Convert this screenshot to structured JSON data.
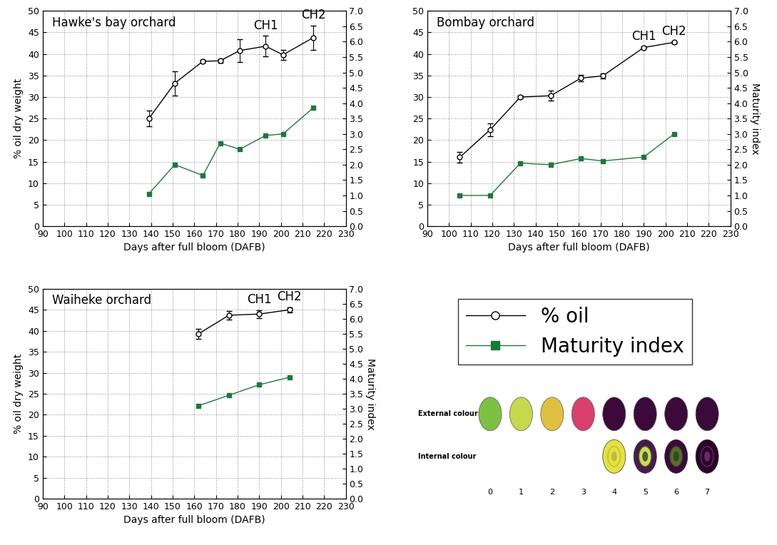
{
  "chart_data": [
    {
      "type": "line",
      "title": "Hawke's bay orchard",
      "xlabel": "Days after full bloom (DAFB)",
      "ylabel": "% oil dry weight",
      "x": [
        139,
        151,
        164,
        172,
        181,
        193,
        201,
        215
      ],
      "series": [
        {
          "name": "% oil",
          "color": "#000000",
          "marker": "circle",
          "line_style": "solid",
          "values": [
            25.0,
            33.2,
            38.3,
            38.4,
            40.8,
            41.8,
            39.8,
            43.8
          ],
          "errors": [
            1.8,
            2.8,
            0.3,
            0.4,
            2.6,
            2.4,
            1.2,
            2.8
          ]
        },
        {
          "name": "Maturity index",
          "color": "#1a7a3a",
          "marker": "square",
          "line_style": "solid",
          "axis": "y2",
          "values": [
            1.05,
            2.0,
            1.65,
            2.7,
            2.5,
            2.95,
            3.0,
            3.85
          ]
        }
      ],
      "annotations": [
        {
          "text": "CH1",
          "x": 193
        },
        {
          "text": "CH2",
          "x": 215
        }
      ],
      "xlim": [
        90,
        230
      ],
      "xticks": [
        90,
        100,
        110,
        120,
        130,
        140,
        150,
        160,
        170,
        180,
        190,
        200,
        210,
        220,
        230
      ],
      "ylim": [
        0,
        50
      ],
      "yticks": [
        0,
        5,
        10,
        15,
        20,
        25,
        30,
        35,
        40,
        45,
        50
      ],
      "y2lim": [
        0,
        7
      ],
      "y2ticks": [
        {
          "value": 0,
          "label": "0.0"
        },
        {
          "value": 0.5,
          "label": "0.5"
        },
        {
          "value": 1,
          "label": "1.0"
        },
        {
          "value": 1.5,
          "label": "1.5"
        },
        {
          "value": 2,
          "label": "2.0"
        },
        {
          "value": 2.5,
          "label": "2.5"
        },
        {
          "value": 3,
          "label": "3.0"
        },
        {
          "value": 3.5,
          "label": "3.5"
        },
        {
          "value": 4,
          "label": "4.0"
        },
        {
          "value": 4.5,
          "label": "4.5"
        },
        {
          "value": 5,
          "label": "5.0"
        },
        {
          "value": 5.5,
          "label": "5.5"
        },
        {
          "value": 6,
          "label": "6.0"
        },
        {
          "value": 6.5,
          "label": "6.5"
        },
        {
          "value": 7,
          "label": "7.0"
        }
      ],
      "grid": true
    },
    {
      "type": "line",
      "title": "Bombay orchard",
      "xlabel": "Days after full bloom (DAFB)",
      "y2label": "Maturity index",
      "x": [
        105,
        119,
        133,
        147,
        161,
        171,
        190,
        204
      ],
      "series": [
        {
          "name": "% oil",
          "color": "#000000",
          "marker": "circle",
          "line_style": "solid",
          "values": [
            16.0,
            22.4,
            30.0,
            30.3,
            34.4,
            34.9,
            41.5,
            42.7
          ],
          "errors": [
            1.3,
            1.5,
            0.3,
            1.2,
            0.8,
            0.6,
            0.2,
            0.2
          ]
        },
        {
          "name": "Maturity index",
          "color": "#1a7a3a",
          "marker": "square",
          "line_style": "solid",
          "axis": "y2",
          "values": [
            1.0,
            1.0,
            2.05,
            2.0,
            2.2,
            2.12,
            2.25,
            3.0
          ]
        }
      ],
      "annotations": [
        {
          "text": "CH1",
          "x": 190
        },
        {
          "text": "CH2",
          "x": 204
        }
      ],
      "xlim": [
        90,
        230
      ],
      "xticks": [
        90,
        100,
        110,
        120,
        130,
        140,
        150,
        160,
        170,
        180,
        190,
        200,
        210,
        220,
        230
      ],
      "ylim": [
        0,
        50
      ],
      "yticks": [
        0,
        5,
        10,
        15,
        20,
        25,
        30,
        35,
        40,
        45,
        50
      ],
      "y2lim": [
        0,
        7
      ],
      "y2ticks": [
        {
          "value": 0,
          "label": "0.0"
        },
        {
          "value": 0.5,
          "label": "0.5"
        },
        {
          "value": 1,
          "label": "1.0"
        },
        {
          "value": 1.5,
          "label": "1.5"
        },
        {
          "value": 2,
          "label": "2.0"
        },
        {
          "value": 2.5,
          "label": "2.5"
        },
        {
          "value": 3,
          "label": "3.0"
        },
        {
          "value": 3.5,
          "label": "3.5"
        },
        {
          "value": 4,
          "label": "4.0"
        },
        {
          "value": 4.5,
          "label": "4.5"
        },
        {
          "value": 5,
          "label": "5.0"
        },
        {
          "value": 5.5,
          "label": "5.5"
        },
        {
          "value": 6,
          "label": "6.0"
        },
        {
          "value": 6.5,
          "label": "6.5"
        },
        {
          "value": 7,
          "label": "7.0"
        }
      ],
      "grid": true
    },
    {
      "type": "line",
      "title": "Waiheke orchard",
      "xlabel": "Days after full bloom (DAFB)",
      "ylabel": "% oil dry weight",
      "y2label": "Maturity index",
      "x": [
        162,
        176,
        190,
        204
      ],
      "series": [
        {
          "name": "% oil",
          "color": "#000000",
          "marker": "circle",
          "line_style": "solid",
          "values": [
            39.3,
            43.7,
            44.0,
            45.0
          ],
          "errors": [
            1.2,
            1.0,
            0.9,
            0.6
          ]
        },
        {
          "name": "Maturity index",
          "color": "#1a7a3a",
          "marker": "square",
          "line_style": "solid",
          "axis": "y2",
          "values": [
            3.1,
            3.45,
            3.8,
            4.05
          ]
        }
      ],
      "annotations": [
        {
          "text": "CH1",
          "x": 190
        },
        {
          "text": "CH2",
          "x": 204
        }
      ],
      "xlim": [
        90,
        230
      ],
      "xticks": [
        90,
        100,
        110,
        120,
        130,
        140,
        150,
        160,
        170,
        180,
        190,
        200,
        210,
        220,
        230
      ],
      "ylim": [
        0,
        50
      ],
      "yticks": [
        0,
        5,
        10,
        15,
        20,
        25,
        30,
        35,
        40,
        45,
        50
      ],
      "y2lim": [
        0,
        7
      ],
      "y2ticks": [
        {
          "value": 0,
          "label": "0.0"
        },
        {
          "value": 0.5,
          "label": "0.5"
        },
        {
          "value": 1,
          "label": "1.0"
        },
        {
          "value": 1.5,
          "label": "1.5"
        },
        {
          "value": 2,
          "label": "2.0"
        },
        {
          "value": 2.5,
          "label": "2.5"
        },
        {
          "value": 3,
          "label": "3.0"
        },
        {
          "value": 3.5,
          "label": "3.5"
        },
        {
          "value": 4,
          "label": "4.0"
        },
        {
          "value": 4.5,
          "label": "4.5"
        },
        {
          "value": 5,
          "label": "5.0"
        },
        {
          "value": 5.5,
          "label": "5.5"
        },
        {
          "value": 6,
          "label": "6.0"
        },
        {
          "value": 6.5,
          "label": "6.5"
        },
        {
          "value": 7,
          "label": "7.0"
        }
      ],
      "grid": true
    }
  ],
  "key": {
    "legend": "upper center",
    "colour_scale": {
      "row_labels": [
        "External colour",
        "Internal colour"
      ],
      "scores": [
        0,
        1,
        2,
        3,
        4,
        5,
        6,
        7
      ],
      "internal_scores": [
        4,
        5,
        6,
        7
      ]
    }
  }
}
